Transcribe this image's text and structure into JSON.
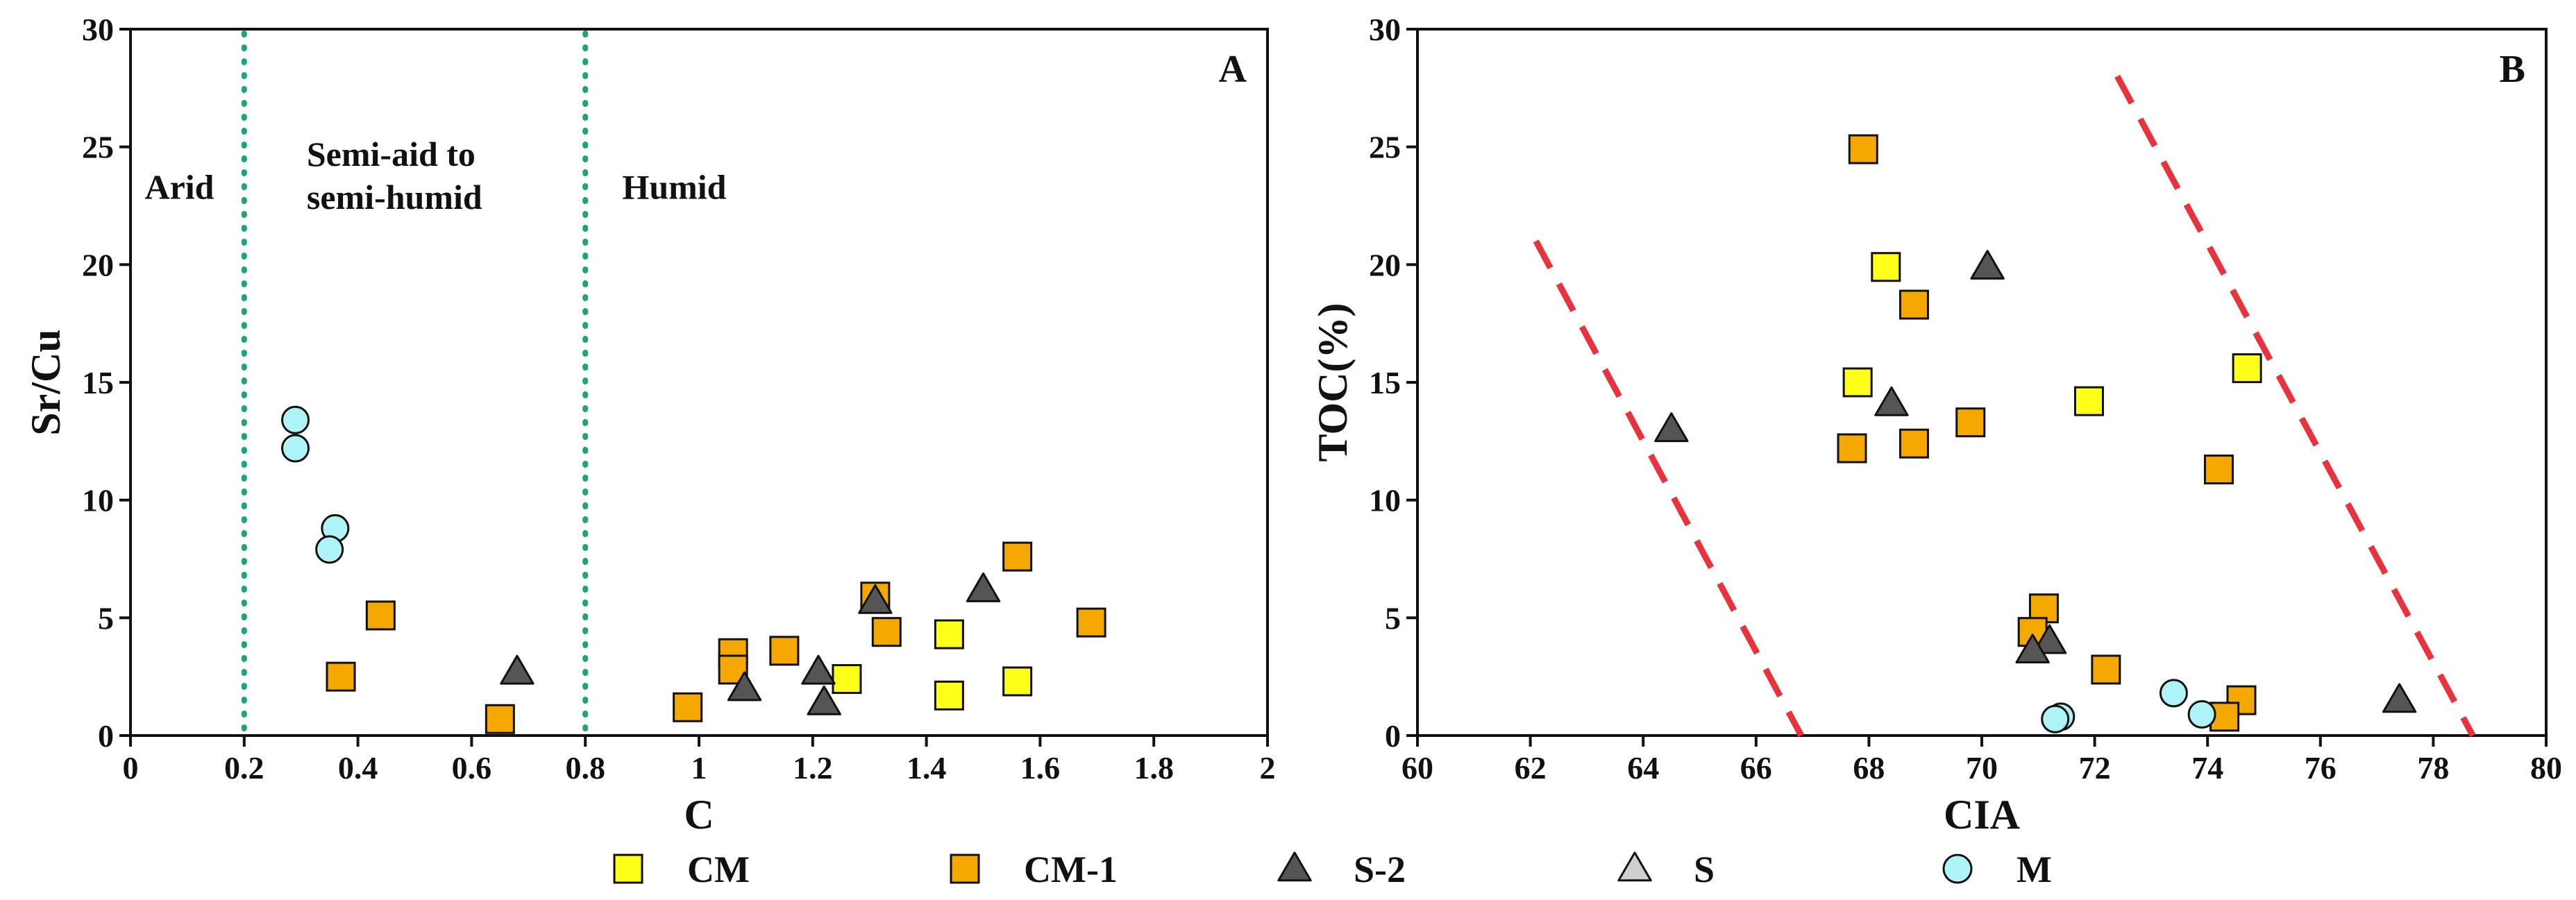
{
  "chart_data": [
    {
      "id": "A",
      "type": "scatter",
      "panel_label": "A",
      "xlabel": "C",
      "ylabel": "Sr/Cu",
      "xlim": [
        0,
        2
      ],
      "ylim": [
        0,
        30
      ],
      "x_ticks": [
        0,
        0.2,
        0.4,
        0.6,
        0.8,
        1,
        1.2,
        1.4,
        1.6,
        1.8,
        2
      ],
      "x_tick_labels": [
        "0",
        "0.2",
        "0.4",
        "0.6",
        "0.8",
        "1",
        "1.2",
        "1.4",
        "1.6",
        "1.8",
        "2"
      ],
      "y_ticks": [
        0,
        5,
        10,
        15,
        20,
        25,
        30
      ],
      "y_tick_labels": [
        "0",
        "5",
        "10",
        "15",
        "20",
        "25",
        "30"
      ],
      "boundaries": [
        0.2,
        0.8
      ],
      "regions": [
        {
          "lines": [
            "Arid"
          ],
          "x": 0.025,
          "y": 22.8
        },
        {
          "lines": [
            "Semi-aid to",
            "semi-humid"
          ],
          "x": 0.31,
          "y": 24.2
        },
        {
          "lines": [
            "Humid"
          ],
          "x": 0.865,
          "y": 22.8
        }
      ],
      "series": [
        {
          "name": "CM",
          "points": [
            [
              1.44,
              4.3
            ],
            [
              1.26,
              2.4
            ],
            [
              1.44,
              1.7
            ],
            [
              1.56,
              2.3
            ]
          ]
        },
        {
          "name": "CM-1",
          "points": [
            [
              0.44,
              5.1
            ],
            [
              0.37,
              2.5
            ],
            [
              0.65,
              0.7
            ],
            [
              0.98,
              1.2
            ],
            [
              1.06,
              3.5
            ],
            [
              1.06,
              2.8
            ],
            [
              1.15,
              3.6
            ],
            [
              1.31,
              5.9
            ],
            [
              1.33,
              4.4
            ],
            [
              1.56,
              7.6
            ],
            [
              1.69,
              4.8
            ]
          ]
        },
        {
          "name": "S-2",
          "points": [
            [
              0.68,
              2.7
            ],
            [
              1.08,
              2.0
            ],
            [
              1.21,
              2.7
            ],
            [
              1.22,
              1.4
            ],
            [
              1.31,
              5.7
            ],
            [
              1.5,
              6.2
            ]
          ]
        },
        {
          "name": "S",
          "points": []
        },
        {
          "name": "M",
          "points": [
            [
              0.29,
              13.4
            ],
            [
              0.29,
              12.2
            ],
            [
              0.36,
              8.8
            ],
            [
              0.35,
              7.9
            ]
          ]
        }
      ]
    },
    {
      "id": "B",
      "type": "scatter",
      "panel_label": "B",
      "xlabel": "CIA",
      "ylabel": "TOC(%)",
      "xlim": [
        60,
        80
      ],
      "ylim": [
        0,
        30
      ],
      "x_ticks": [
        60,
        62,
        64,
        66,
        68,
        70,
        72,
        74,
        76,
        78,
        80
      ],
      "x_tick_labels": [
        "60",
        "62",
        "64",
        "66",
        "68",
        "70",
        "72",
        "74",
        "76",
        "78",
        "80"
      ],
      "y_ticks": [
        0,
        5,
        10,
        15,
        20,
        25,
        30
      ],
      "y_tick_labels": [
        "0",
        "5",
        "10",
        "15",
        "20",
        "25",
        "30"
      ],
      "trend_lines": [
        {
          "from": [
            62.1,
            21.0
          ],
          "to": [
            66.8,
            0
          ]
        },
        {
          "from": [
            72.4,
            28.0
          ],
          "to": [
            78.7,
            0
          ]
        }
      ],
      "series": [
        {
          "name": "CM",
          "points": [
            [
              68.3,
              19.9
            ],
            [
              67.8,
              15.0
            ],
            [
              71.9,
              14.2
            ],
            [
              74.7,
              15.6
            ]
          ]
        },
        {
          "name": "CM-1",
          "points": [
            [
              67.9,
              24.9
            ],
            [
              68.8,
              18.3
            ],
            [
              67.7,
              12.2
            ],
            [
              68.8,
              12.4
            ],
            [
              69.8,
              13.3
            ],
            [
              74.2,
              11.3
            ],
            [
              71.1,
              5.4
            ],
            [
              70.9,
              4.4
            ],
            [
              72.2,
              2.8
            ],
            [
              74.6,
              1.5
            ],
            [
              74.3,
              0.8
            ]
          ]
        },
        {
          "name": "S-2",
          "points": [
            [
              64.5,
              13.0
            ],
            [
              68.4,
              14.1
            ],
            [
              70.1,
              19.9
            ],
            [
              71.2,
              4.0
            ],
            [
              70.9,
              3.6
            ],
            [
              77.4,
              1.5
            ]
          ]
        },
        {
          "name": "S",
          "points": []
        },
        {
          "name": "M",
          "points": [
            [
              73.4,
              1.8
            ],
            [
              73.9,
              0.9
            ],
            [
              71.4,
              0.8
            ],
            [
              71.3,
              0.7
            ]
          ]
        }
      ]
    }
  ],
  "legend": {
    "position": "bottom",
    "items": [
      {
        "label": "CM",
        "marker": "square",
        "color": "#ffff1a"
      },
      {
        "label": "CM-1",
        "marker": "square",
        "color": "#f5a800"
      },
      {
        "label": "S-2",
        "marker": "triangle",
        "color": "#555555"
      },
      {
        "label": "S",
        "marker": "triangle",
        "color": "#cfcfcf"
      },
      {
        "label": "M",
        "marker": "circle",
        "color": "#aef3f5"
      }
    ]
  },
  "colors": {
    "CM": "#ffff1a",
    "CM-1": "#f5a800",
    "S-2": "#555555",
    "S": "#cfcfcf",
    "M": "#aef3f5",
    "boundary": "#1aa676",
    "trend": "#e8323c",
    "axis": "#111111"
  }
}
